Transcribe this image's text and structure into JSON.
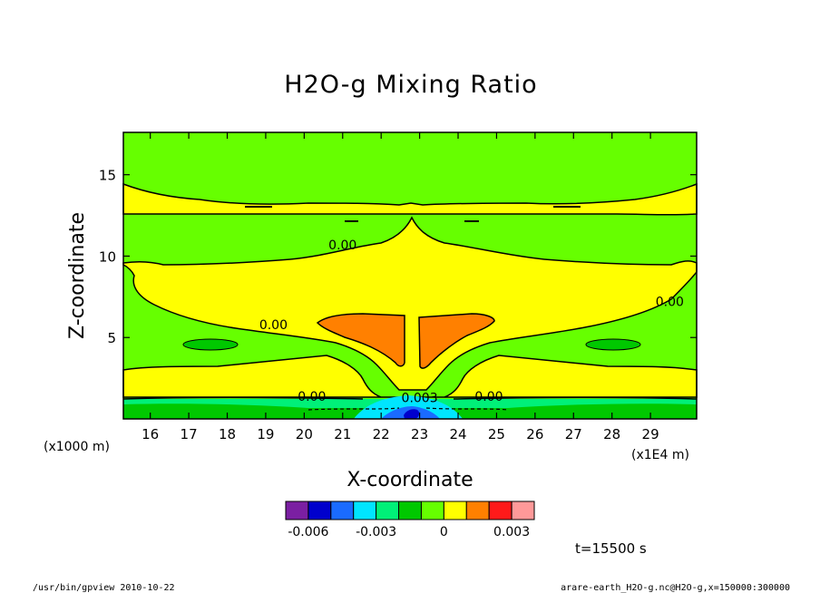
{
  "chart_data": {
    "type": "contour",
    "title": "H2O-g Mixing Ratio",
    "xlabel": "X-coordinate",
    "ylabel": "Z-coordinate",
    "x_unit": "(x1E4 m)",
    "y_unit": "(x1000 m)",
    "xlim": [
      15.3,
      30.2
    ],
    "ylim": [
      0,
      17.6
    ],
    "x_ticks": [
      16,
      17,
      18,
      19,
      20,
      21,
      22,
      23,
      24,
      25,
      26,
      27,
      28,
      29
    ],
    "y_ticks": [
      5,
      10,
      15
    ],
    "time_label": "t=15500 s",
    "contour_labels": [
      {
        "text": "0.00",
        "x": 21.0,
        "y": 10.7
      },
      {
        "text": "0.00",
        "x": 19.2,
        "y": 5.8
      },
      {
        "text": "0.00",
        "x": 29.5,
        "y": 7.2
      },
      {
        "text": "0.00",
        "x": 20.2,
        "y": 1.4
      },
      {
        "text": "0.003",
        "x": 23.0,
        "y": 1.3
      },
      {
        "text": "0.00",
        "x": 24.8,
        "y": 1.4
      }
    ],
    "colorbar": {
      "levels": [
        -0.007,
        -0.006,
        -0.005,
        -0.004,
        -0.003,
        -0.002,
        -0.001,
        0,
        0.001,
        0.002,
        0.003,
        0.004
      ],
      "colors": [
        "#7b1fa2",
        "#0000cc",
        "#1a6bff",
        "#00e5ff",
        "#00f078",
        "#00c800",
        "#66ff00",
        "#ffff00",
        "#ff8000",
        "#ff1a1a",
        "#ff9999"
      ],
      "tick_labels": [
        "-0.006",
        "-0.003",
        "0",
        "0.003"
      ],
      "tick_values": [
        -0.006,
        -0.003,
        0,
        0.003
      ]
    }
  },
  "footer": {
    "left": "/usr/bin/gpview   2010-10-22",
    "right": "arare-earth_H2O-g.nc@H2O-g,x=150000:300000"
  }
}
